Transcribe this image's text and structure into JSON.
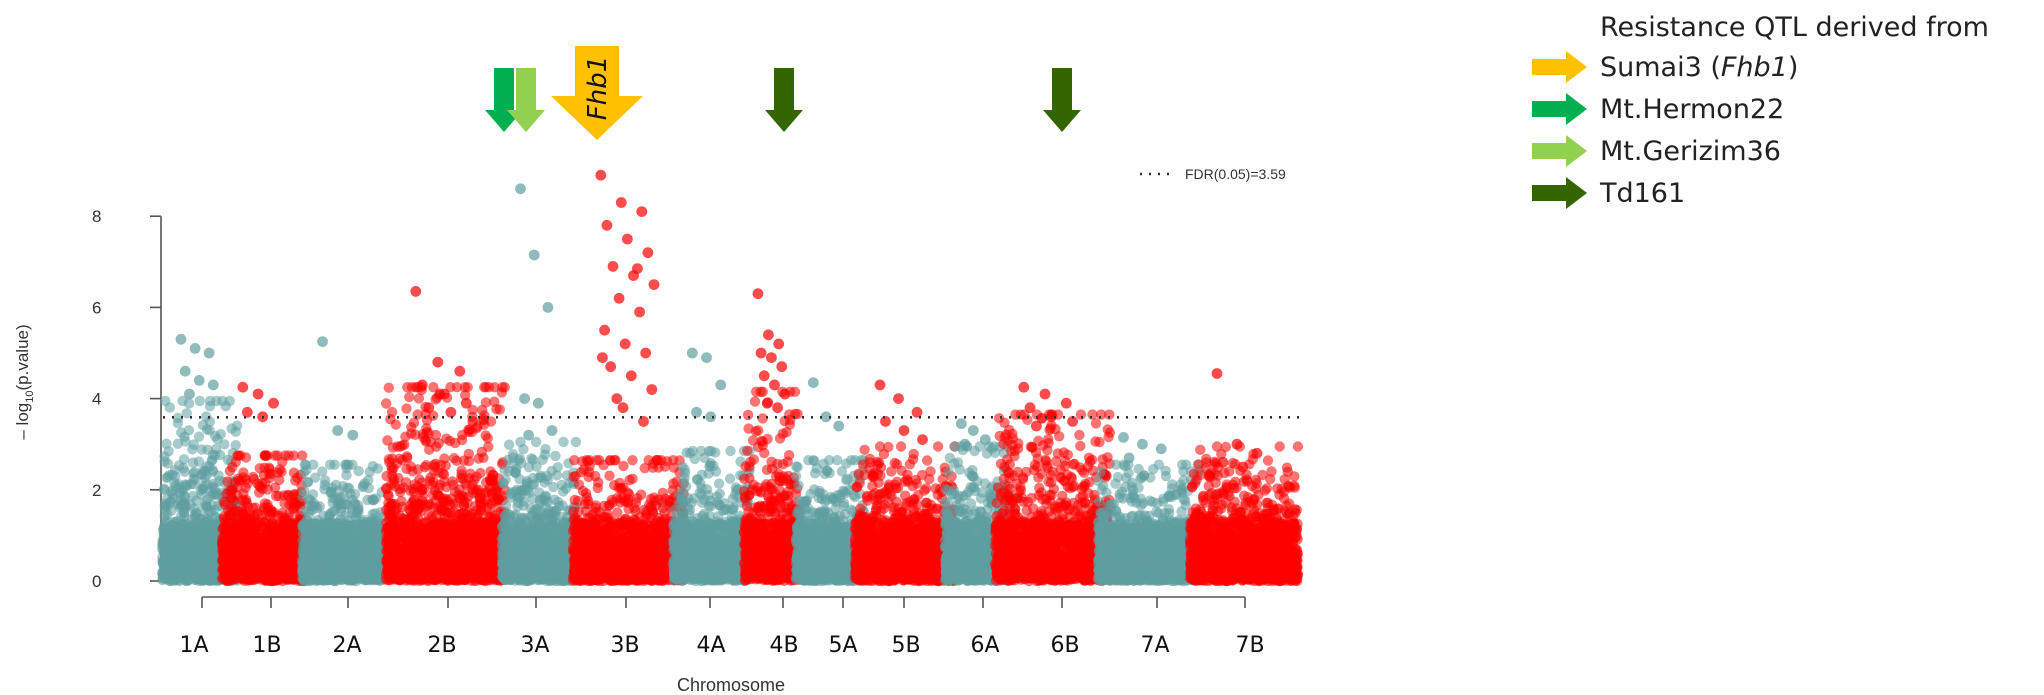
{
  "chart_data": {
    "type": "scatter",
    "title": "",
    "xlabel": "Chromosome",
    "ylabel": "– log10(p.value)",
    "ylabel_main": "– log",
    "ylabel_sub": "10",
    "ylabel_rest": "(p.value)",
    "ylim": [
      0,
      9
    ],
    "yticks": [
      0,
      2,
      4,
      6,
      8
    ],
    "chromosomes": [
      "1A",
      "1B",
      "2A",
      "2B",
      "3A",
      "3B",
      "4A",
      "4B",
      "5A",
      "5B",
      "6A",
      "6B",
      "7A",
      "7B"
    ],
    "series": [
      {
        "name": "",
        "color": "#5f9ea0",
        "chromosomes": [
          "1A",
          "2A",
          "3A",
          "4A",
          "5A",
          "6A",
          "7A"
        ]
      },
      {
        "name": "",
        "color": "#ff0000",
        "chromosomes": [
          "1B",
          "2B",
          "3B",
          "4B",
          "5B",
          "6B",
          "7B"
        ]
      }
    ],
    "chrom_profile": {
      "1A": {
        "base": 3.6,
        "peak": 5.3
      },
      "1B": {
        "base": 2.4,
        "peak": 4.25
      },
      "2A": {
        "base": 2.2,
        "peak": 5.25
      },
      "2B": {
        "base": 3.9,
        "peak": 6.35
      },
      "3A": {
        "base": 2.7,
        "peak": 8.6
      },
      "3B": {
        "base": 2.3,
        "peak": 8.9
      },
      "4A": {
        "base": 2.5,
        "peak": 5.0
      },
      "4B": {
        "base": 3.8,
        "peak": 6.3
      },
      "5A": {
        "base": 2.3,
        "peak": 4.35
      },
      "5B": {
        "base": 2.6,
        "peak": 4.3
      },
      "6A": {
        "base": 2.6,
        "peak": 3.45
      },
      "6B": {
        "base": 3.3,
        "peak": 4.25
      },
      "7A": {
        "base": 2.2,
        "peak": 3.15
      },
      "7B": {
        "base": 2.6,
        "peak": 4.55
      }
    },
    "highlights": [
      {
        "chrom": "1A",
        "values": [
          5.3,
          5.1,
          5.0,
          4.6,
          4.4,
          4.3,
          4.1
        ]
      },
      {
        "chrom": "1B",
        "values": [
          4.25,
          4.1,
          3.9,
          3.7,
          3.6
        ]
      },
      {
        "chrom": "2A",
        "values": [
          5.25,
          3.3,
          3.2
        ]
      },
      {
        "chrom": "2B",
        "values": [
          6.35,
          4.8,
          4.6,
          4.3,
          4.1,
          3.9,
          3.8,
          3.7,
          3.5
        ]
      },
      {
        "chrom": "3A",
        "values": [
          8.6,
          7.15,
          6.0,
          4.0,
          3.9,
          3.3,
          3.2
        ]
      },
      {
        "chrom": "3B",
        "values": [
          8.9,
          8.3,
          8.1,
          7.8,
          7.5,
          7.2,
          6.9,
          6.7,
          6.5,
          6.2,
          5.9,
          5.5,
          5.2,
          5.0,
          4.7,
          4.5,
          4.2,
          4.0,
          6.85,
          4.9,
          3.8,
          3.5
        ]
      },
      {
        "chrom": "4A",
        "values": [
          5.0,
          4.9,
          4.3,
          3.7,
          3.6
        ]
      },
      {
        "chrom": "4B",
        "values": [
          6.3,
          5.4,
          5.2,
          5.0,
          4.9,
          4.7,
          4.5,
          4.3,
          4.1,
          3.9,
          3.8
        ]
      },
      {
        "chrom": "5A",
        "values": [
          4.35,
          3.6,
          3.4
        ]
      },
      {
        "chrom": "5B",
        "values": [
          4.3,
          4.0,
          3.7,
          3.5,
          3.3,
          3.1
        ]
      },
      {
        "chrom": "6A",
        "values": [
          3.45,
          3.3,
          3.1,
          3.0
        ]
      },
      {
        "chrom": "6B",
        "values": [
          4.25,
          4.1,
          3.9,
          3.8,
          3.6,
          3.5,
          3.4
        ]
      },
      {
        "chrom": "7A",
        "values": [
          3.15,
          3.0,
          2.9,
          2.7
        ]
      },
      {
        "chrom": "7B",
        "values": [
          4.55,
          3.0,
          2.8,
          2.6,
          2.5
        ]
      }
    ],
    "threshold": {
      "value": 3.59,
      "label": "FDR(0.05)=3.59"
    },
    "qtl_arrows": [
      {
        "chrom": "3A",
        "offset": -0.15,
        "color": "#00b050"
      },
      {
        "chrom": "3A",
        "offset": 0.15,
        "color": "#92d050"
      },
      {
        "chrom": "3B",
        "offset": -0.25,
        "color": "#ffc000",
        "label": "Fhb1",
        "big": true
      },
      {
        "chrom": "4B",
        "offset": 0.0,
        "color": "#336600"
      },
      {
        "chrom": "6B",
        "offset": 0.0,
        "color": "#336600"
      }
    ]
  },
  "legend": {
    "title": "Resistance QTL derived from",
    "items": [
      {
        "label": "Sumai3 (",
        "italic": "Fhb1",
        "suffix": ")",
        "color": "#ffc000"
      },
      {
        "label": "Mt.Hermon22",
        "italic": "",
        "suffix": "",
        "color": "#00b050"
      },
      {
        "label": "Mt.Gerizim36",
        "italic": "",
        "suffix": "",
        "color": "#92d050"
      },
      {
        "label": "Td161",
        "italic": "",
        "suffix": "",
        "color": "#336600"
      }
    ]
  }
}
